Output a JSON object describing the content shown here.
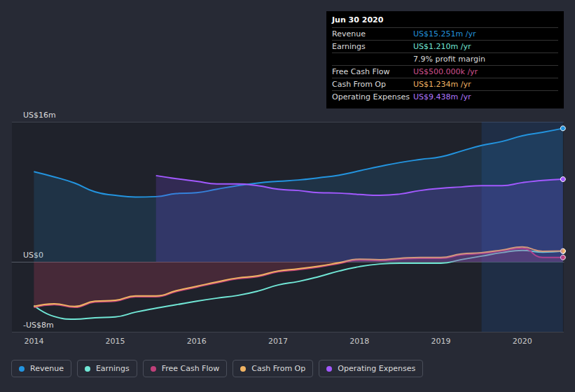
{
  "chart_data": {
    "type": "line",
    "x": [
      2014,
      2014.25,
      2014.5,
      2014.75,
      2015,
      2015.25,
      2015.5,
      2015.75,
      2016,
      2016.25,
      2016.5,
      2016.75,
      2017,
      2017.25,
      2017.5,
      2017.75,
      2018,
      2018.25,
      2018.5,
      2018.75,
      2019,
      2019.25,
      2019.5,
      2019.75,
      2020,
      2020.25,
      2020.5
    ],
    "series": [
      {
        "name": "Revenue",
        "color": "#2394df",
        "values": [
          10.3,
          9.7,
          9.0,
          8.0,
          7.6,
          7.4,
          7.45,
          7.8,
          7.9,
          8.3,
          8.7,
          9.0,
          9.2,
          9.35,
          9.6,
          9.9,
          10.4,
          10.9,
          11.35,
          11.7,
          12.0,
          12.65,
          13.3,
          13.75,
          14.4,
          14.8,
          15.251
        ]
      },
      {
        "name": "Earnings",
        "color": "#71e7d6",
        "values": [
          -5.0,
          -6.25,
          -6.55,
          -6.4,
          -6.3,
          -5.75,
          -5.3,
          -4.9,
          -4.5,
          -4.15,
          -3.85,
          -3.35,
          -2.65,
          -2.25,
          -1.7,
          -1.05,
          -0.55,
          -0.25,
          -0.15,
          -0.15,
          -0.15,
          0.25,
          0.65,
          1.05,
          1.3,
          1.1,
          1.21
        ]
      },
      {
        "name": "Free Cash Flow",
        "color": "#c0407a",
        "values": [
          -5.2,
          -4.9,
          -5.2,
          -4.6,
          -4.5,
          -4.0,
          -4.0,
          -3.4,
          -2.9,
          -2.4,
          -1.95,
          -1.7,
          -1.15,
          -0.9,
          -0.6,
          -0.2,
          0.2,
          0.15,
          0.3,
          0.4,
          0.4,
          0.8,
          0.95,
          1.25,
          1.55,
          0.5,
          0.5
        ]
      },
      {
        "name": "Cash From Op",
        "color": "#f0b363",
        "values": [
          -5.1,
          -4.8,
          -5.1,
          -4.5,
          -4.4,
          -3.9,
          -3.9,
          -3.3,
          -2.8,
          -2.3,
          -1.85,
          -1.6,
          -1.05,
          -0.8,
          -0.5,
          -0.1,
          0.3,
          0.25,
          0.4,
          0.5,
          0.5,
          0.9,
          1.05,
          1.35,
          1.7,
          1.2,
          1.234
        ]
      },
      {
        "name": "Operating Expenses",
        "color": "#a259ff",
        "values": [
          null,
          null,
          null,
          null,
          null,
          null,
          9.85,
          9.5,
          9.2,
          8.9,
          8.9,
          8.7,
          8.3,
          8.15,
          7.9,
          7.85,
          7.7,
          7.6,
          7.75,
          8.15,
          8.4,
          8.55,
          8.7,
          8.7,
          9.05,
          9.3,
          9.438
        ]
      }
    ],
    "xlim": [
      2013.73,
      2020.51
    ],
    "xticks": [
      2014,
      2015,
      2016,
      2017,
      2018,
      2019,
      2020
    ],
    "ylim": [
      -8,
      16
    ],
    "yticks": [
      {
        "value": -8,
        "label": "-US$8m"
      },
      {
        "value": 0,
        "label": "US$0"
      },
      {
        "value": 16,
        "label": "US$16m"
      }
    ],
    "highlight": [
      2019.5,
      2020.5
    ],
    "grid": true,
    "legend": "bottom",
    "annotations": [
      {
        "title": "Jun 30 2020",
        "rows": [
          {
            "label": "Revenue",
            "value": "US$15.251m /yr",
            "color": "#2394df"
          },
          {
            "label": "Earnings",
            "value": "US$1.210m /yr",
            "color": "#71e7d6"
          },
          {
            "value": "7.9% profit margin",
            "color": "#dddddd"
          },
          {
            "label": "Free Cash Flow",
            "value": "US$500.000k /yr",
            "color": "#d2508e"
          },
          {
            "label": "Cash From Op",
            "value": "US$1.234m /yr",
            "color": "#f0b363"
          },
          {
            "label": "Operating Expenses",
            "value": "US$9.438m /yr",
            "color": "#b077ff"
          }
        ]
      }
    ]
  }
}
